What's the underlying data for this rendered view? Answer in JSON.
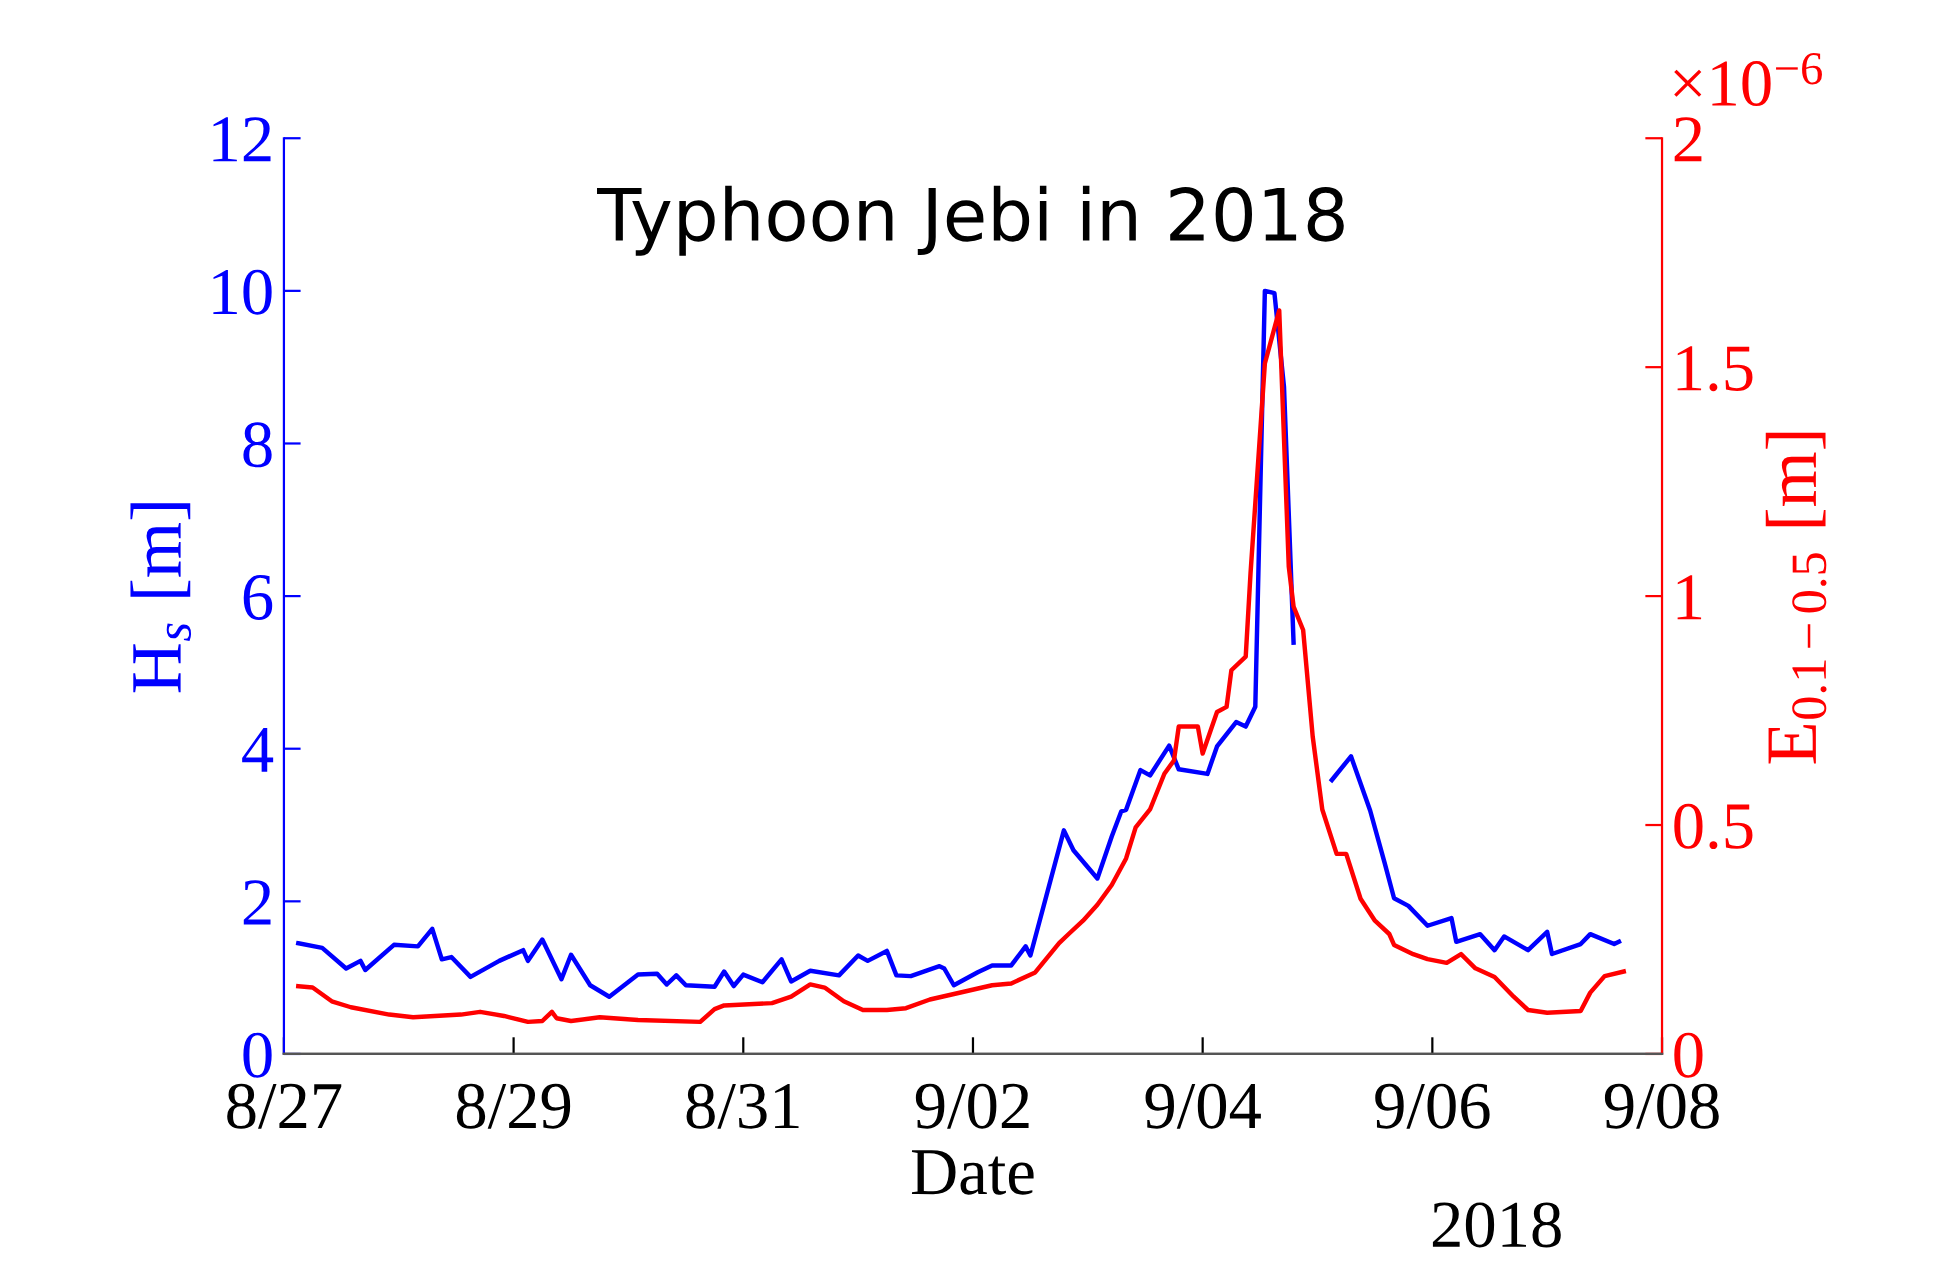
{
  "chart_data": {
    "type": "line",
    "title": "Typhoon Jebi in 2018",
    "xlabel": "Date",
    "ylabel": "H$_{s}$ [m]",
    "y2label": "E$_{0.1−0.5}$ [m]",
    "annotations": [
      "×10$^{−6}$",
      "2018"
    ],
    "xlim": [
      "2018-08-27",
      "2018-09-08"
    ],
    "xticks": [
      {
        "value": "2018-08-27",
        "label": "8/27"
      },
      {
        "value": "2018-08-29",
        "label": "8/29"
      },
      {
        "value": "2018-08-31",
        "label": "8/31"
      },
      {
        "value": "2018-09-02",
        "label": "9/02"
      },
      {
        "value": "2018-09-04",
        "label": "9/04"
      },
      {
        "value": "2018-09-06",
        "label": "9/06"
      },
      {
        "value": "2018-09-08",
        "label": "9/08"
      }
    ],
    "ylim": [
      0,
      12
    ],
    "yticks": [
      0,
      2,
      4,
      6,
      8,
      10,
      12
    ],
    "y2lim": [
      0,
      2
    ],
    "y2ticks": [
      0,
      0.5,
      1,
      1.5,
      2
    ],
    "grid": false,
    "legend": false,
    "marker": "none",
    "line_style": "solid",
    "series": [
      {
        "color": "#0000ff",
        "axis": "y",
        "x": [
          "2018-08-27T03:00",
          "2018-08-27T08:00",
          "2018-08-27T13:00",
          "2018-08-27T16:00",
          "2018-08-27T17:00",
          "2018-08-27T23:00",
          "2018-08-28T04:00",
          "2018-08-28T07:00",
          "2018-08-28T09:00",
          "2018-08-28T11:00",
          "2018-08-28T15:00",
          "2018-08-28T21:00",
          "2018-08-29T02:00",
          "2018-08-29T03:00",
          "2018-08-29T06:00",
          "2018-08-29T10:00",
          "2018-08-29T12:00",
          "2018-08-29T16:00",
          "2018-08-29T20:00",
          "2018-08-30T02:00",
          "2018-08-30T06:00",
          "2018-08-30T08:00",
          "2018-08-30T10:00",
          "2018-08-30T12:00",
          "2018-08-30T18:00",
          "2018-08-30T20:00",
          "2018-08-30T22:00",
          "2018-08-31T00:00",
          "2018-08-31T04:00",
          "2018-08-31T08:00",
          "2018-08-31T10:00",
          "2018-08-31T14:00",
          "2018-08-31T20:00",
          "2018-09-01T00:00",
          "2018-09-01T02:00",
          "2018-09-01T06:00",
          "2018-09-01T08:00",
          "2018-09-01T11:00",
          "2018-09-01T17:00",
          "2018-09-01T18:00",
          "2018-09-01T20:00",
          "2018-09-02T01:00",
          "2018-09-02T04:00",
          "2018-09-02T08:00",
          "2018-09-02T11:00",
          "2018-09-02T12:00",
          "2018-09-02T19:00",
          "2018-09-02T21:00",
          "2018-09-03T02:00",
          "2018-09-03T05:00",
          "2018-09-03T07:00",
          "2018-09-03T08:00",
          "2018-09-03T11:00",
          "2018-09-03T13:00",
          "2018-09-03T17:00",
          "2018-09-03T19:00",
          "2018-09-04T01:00",
          "2018-09-04T03:00",
          "2018-09-04T07:00",
          "2018-09-04T09:00",
          "2018-09-04T11:00",
          "2018-09-04T13:00",
          "2018-09-04T15:00",
          "2018-09-04T17:00",
          "2018-09-04T19:00",
          "2018-09-04T23:00",
          "2018-09-05T03:00",
          "2018-09-05T07:00",
          "2018-09-05T11:00",
          "2018-09-05T14:00",
          "2018-09-05T16:00",
          "2018-09-05T19:00",
          "2018-09-05T23:00",
          "2018-09-06T04:00",
          "2018-09-06T05:00",
          "2018-09-06T10:00",
          "2018-09-06T13:00",
          "2018-09-06T15:00",
          "2018-09-06T20:00",
          "2018-09-07T00:00",
          "2018-09-07T01:00",
          "2018-09-07T07:00",
          "2018-09-07T09:00",
          "2018-09-07T14:00",
          "2018-09-07T15:00"
        ],
        "values": [
          1.45,
          1.39,
          1.12,
          1.22,
          1.1,
          1.43,
          1.41,
          1.64,
          1.24,
          1.27,
          1.01,
          1.22,
          1.36,
          1.22,
          1.5,
          0.98,
          1.3,
          0.9,
          0.75,
          1.04,
          1.05,
          0.91,
          1.03,
          0.9,
          0.88,
          1.08,
          0.89,
          1.04,
          0.94,
          1.24,
          0.95,
          1.09,
          1.03,
          1.29,
          1.22,
          1.35,
          1.03,
          1.02,
          1.15,
          1.12,
          0.9,
          1.07,
          1.16,
          1.16,
          1.41,
          1.29,
          2.93,
          2.67,
          2.3,
          2.85,
          3.18,
          3.2,
          3.72,
          3.65,
          4.04,
          3.73,
          3.67,
          4.03,
          4.35,
          4.29,
          4.55,
          10.0,
          9.97,
          8.74,
          5.39,
          null,
          3.59,
          3.9,
          3.19,
          2.51,
          2.04,
          1.94,
          1.68,
          1.78,
          1.47,
          1.57,
          1.36,
          1.54,
          1.36,
          1.6,
          1.31,
          1.44,
          1.57,
          1.44,
          1.47
        ]
      },
      {
        "color": "#ff0000",
        "axis": "y2",
        "x": [
          "2018-08-27T03:00",
          "2018-08-27T06:00",
          "2018-08-27T10:00",
          "2018-08-27T14:00",
          "2018-08-27T22:00",
          "2018-08-28T03:00",
          "2018-08-28T13:00",
          "2018-08-28T17:00",
          "2018-08-28T22:00",
          "2018-08-29T03:00",
          "2018-08-29T06:00",
          "2018-08-29T08:00",
          "2018-08-29T09:00",
          "2018-08-29T12:00",
          "2018-08-29T18:00",
          "2018-08-30T02:00",
          "2018-08-30T15:00",
          "2018-08-30T18:00",
          "2018-08-30T20:00",
          "2018-08-31T06:00",
          "2018-08-31T10:00",
          "2018-08-31T14:00",
          "2018-08-31T17:00",
          "2018-08-31T21:00",
          "2018-09-01T01:00",
          "2018-09-01T06:00",
          "2018-09-01T10:00",
          "2018-09-01T15:00",
          "2018-09-01T23:00",
          "2018-09-02T04:00",
          "2018-09-02T08:00",
          "2018-09-02T13:00",
          "2018-09-02T18:00",
          "2018-09-02T20:00",
          "2018-09-02T23:00",
          "2018-09-03T02:00",
          "2018-09-03T05:00",
          "2018-09-03T08:00",
          "2018-09-03T10:00",
          "2018-09-03T13:00",
          "2018-09-03T16:00",
          "2018-09-03T18:00",
          "2018-09-03T19:00",
          "2018-09-03T23:00",
          "2018-09-04T00:00",
          "2018-09-04T03:00",
          "2018-09-04T05:00",
          "2018-09-04T06:00",
          "2018-09-04T09:00",
          "2018-09-04T10:00",
          "2018-09-04T13:00",
          "2018-09-04T16:00",
          "2018-09-04T18:00",
          "2018-09-04T19:00",
          "2018-09-04T21:00",
          "2018-09-04T23:00",
          "2018-09-05T01:00",
          "2018-09-05T04:00",
          "2018-09-05T06:00",
          "2018-09-05T09:00",
          "2018-09-05T12:00",
          "2018-09-05T15:00",
          "2018-09-05T16:00",
          "2018-09-05T20:00",
          "2018-09-05T23:00",
          "2018-09-06T03:00",
          "2018-09-06T06:00",
          "2018-09-06T09:00",
          "2018-09-06T13:00",
          "2018-09-06T17:00",
          "2018-09-06T20:00",
          "2018-09-07T00:00",
          "2018-09-07T07:00",
          "2018-09-07T09:00",
          "2018-09-07T12:00",
          "2018-09-07T16:00"
        ],
        "values": [
          0.148,
          0.145,
          0.115,
          0.102,
          0.086,
          0.08,
          0.086,
          0.092,
          0.083,
          0.07,
          0.072,
          0.092,
          0.078,
          0.072,
          0.08,
          0.074,
          0.07,
          0.098,
          0.106,
          0.111,
          0.125,
          0.152,
          0.145,
          0.115,
          0.096,
          0.096,
          0.1,
          0.119,
          0.138,
          0.15,
          0.154,
          0.178,
          0.242,
          0.262,
          0.291,
          0.326,
          0.369,
          0.427,
          0.495,
          0.534,
          0.612,
          0.641,
          0.715,
          0.715,
          0.656,
          0.747,
          0.758,
          0.838,
          0.868,
          1.049,
          1.508,
          1.624,
          1.064,
          0.977,
          0.926,
          0.693,
          0.534,
          0.437,
          0.437,
          0.339,
          0.291,
          0.262,
          0.238,
          0.218,
          0.207,
          0.199,
          0.218,
          0.187,
          0.168,
          0.125,
          0.096,
          0.09,
          0.094,
          0.134,
          0.17,
          0.18
        ]
      }
    ]
  }
}
